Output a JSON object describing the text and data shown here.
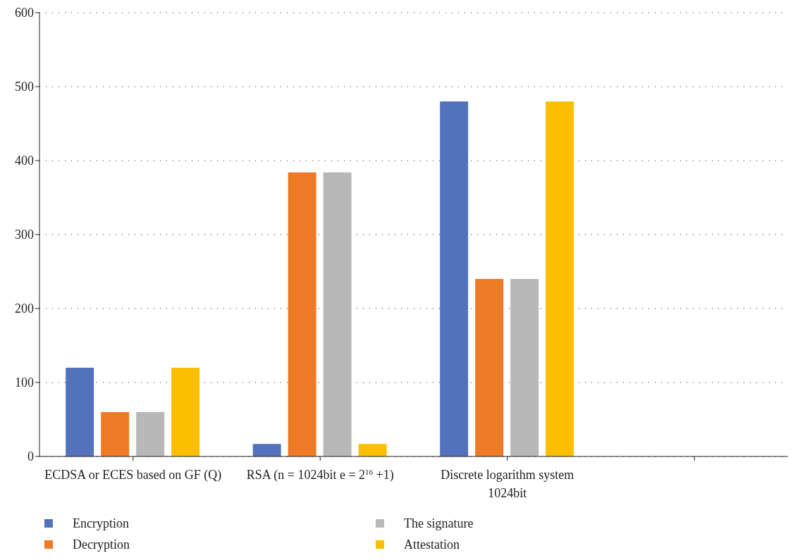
{
  "chart_data": {
    "type": "bar",
    "categories": [
      "ECDSA or ECES based on GF (Q)",
      "RSA (n = 1024bit e = 2$^{16}$ +1)",
      "Discrete logarithm system 1024bit",
      null
    ],
    "series": [
      {
        "name": "Encryption",
        "color": "#5273bb",
        "values": [
          120,
          17,
          480,
          null
        ]
      },
      {
        "name": "Decryption",
        "color": "#ee7a25",
        "values": [
          60,
          384,
          240,
          null
        ]
      },
      {
        "name": "The signature",
        "color": "#b8b8b8",
        "values": [
          60,
          384,
          240,
          null
        ]
      },
      {
        "name": "Attestation",
        "color": "#fbbf00",
        "values": [
          120,
          17,
          480,
          null
        ]
      }
    ],
    "ylim": [
      0,
      600
    ],
    "yticks": [
      0,
      100,
      200,
      300,
      400,
      500,
      600
    ],
    "grid": "y",
    "legend": "bottom"
  }
}
